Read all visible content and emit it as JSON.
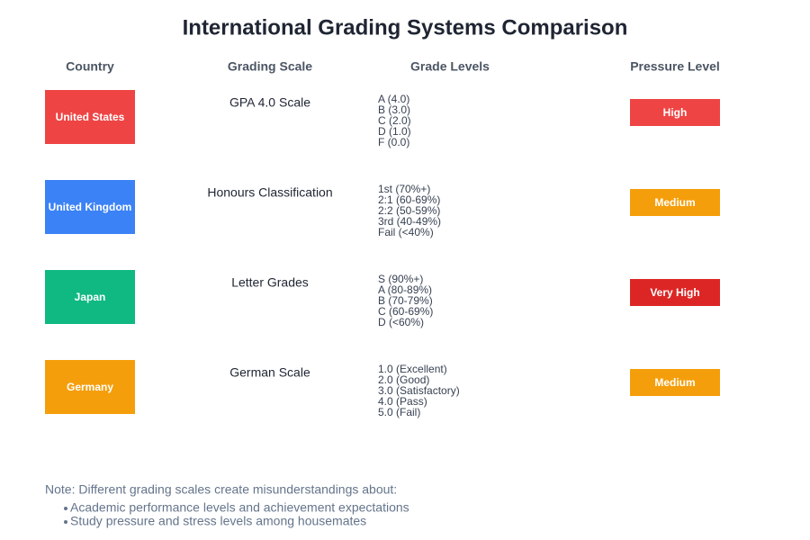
{
  "title": "International Grading Systems Comparison",
  "headers": [
    "Country",
    "Grading Scale",
    "Grade Levels",
    "Pressure Level"
  ],
  "rows": [
    {
      "country": "United States",
      "country_color": "#ef4444",
      "scale": "GPA 4.0 Scale",
      "levels": [
        "A (4.0)",
        "B (3.0)",
        "C (2.0)",
        "D (1.0)",
        "F (0.0)"
      ],
      "pressure": "High",
      "pressure_color": "#ef4444"
    },
    {
      "country": "United Kingdom",
      "country_color": "#3b82f6",
      "scale": "Honours Classification",
      "levels": [
        "1st (70%+)",
        "2:1 (60-69%)",
        "2:2 (50-59%)",
        "3rd (40-49%)",
        "Fail (<40%)"
      ],
      "pressure": "Medium",
      "pressure_color": "#f59e0b"
    },
    {
      "country": "Japan",
      "country_color": "#10b981",
      "scale": "Letter Grades",
      "levels": [
        "S (90%+)",
        "A (80-89%)",
        "B (70-79%)",
        "C (60-69%)",
        "D (<60%)"
      ],
      "pressure": "Very High",
      "pressure_color": "#dc2626"
    },
    {
      "country": "Germany",
      "country_color": "#f59e0b",
      "scale": "German Scale",
      "levels": [
        "1.0 (Excellent)",
        "2.0 (Good)",
        "3.0 (Satisfactory)",
        "4.0 (Pass)",
        "5.0 (Fail)"
      ],
      "pressure": "Medium",
      "pressure_color": "#f59e0b"
    }
  ],
  "note": {
    "intro": "Note: Different grading scales create misunderstandings about:",
    "items": [
      "Academic performance levels and achievement expectations",
      "Study pressure and stress levels among housemates"
    ]
  }
}
